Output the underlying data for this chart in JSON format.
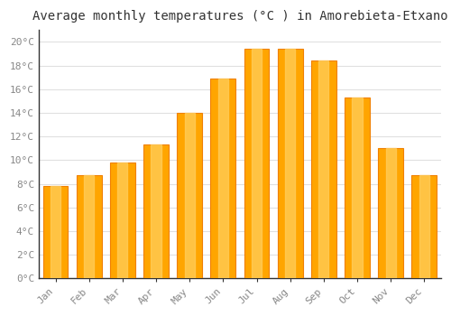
{
  "title": "Average monthly temperatures (°C ) in Amorebieta-Etxano",
  "months": [
    "Jan",
    "Feb",
    "Mar",
    "Apr",
    "May",
    "Jun",
    "Jul",
    "Aug",
    "Sep",
    "Oct",
    "Nov",
    "Dec"
  ],
  "values": [
    7.8,
    8.7,
    9.8,
    11.3,
    14.0,
    16.9,
    19.4,
    19.4,
    18.4,
    15.3,
    11.0,
    8.7
  ],
  "bar_color_main": "#FFA500",
  "bar_color_light": "#FFD060",
  "bar_color_dark": "#F08000",
  "background_color": "#FFFFFF",
  "grid_color": "#E0E0E0",
  "ylim": [
    0,
    21
  ],
  "ytick_step": 2,
  "title_fontsize": 10,
  "tick_fontsize": 8,
  "font_family": "monospace",
  "tick_color": "#888888",
  "spine_color": "#333333"
}
